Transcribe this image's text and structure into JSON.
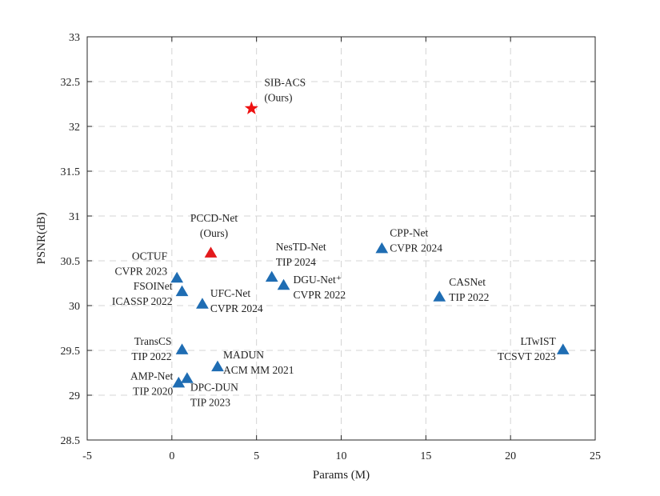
{
  "chart_data": {
    "type": "scatter",
    "xlabel": "Params (M)",
    "ylabel": "PSNR(dB)",
    "xlim": [
      -5,
      25
    ],
    "ylim": [
      28.5,
      33
    ],
    "xticks": [
      -5,
      0,
      5,
      10,
      15,
      20,
      25
    ],
    "yticks": [
      28.5,
      29,
      29.5,
      30,
      30.5,
      31,
      31.5,
      32,
      32.5,
      33
    ],
    "grid": true,
    "colors": {
      "ours_star": "#ee1111",
      "ours_triangle": "#e31a1c",
      "baseline": "#1f6db3"
    },
    "points": [
      {
        "name": "SIB-ACS",
        "sub": "(Ours)",
        "x": 4.7,
        "y": 32.2,
        "marker": "star",
        "group": "ours_star"
      },
      {
        "name": "PCCD-Net",
        "sub": "(Ours)",
        "x": 2.3,
        "y": 30.59,
        "marker": "triangle",
        "group": "ours_triangle"
      },
      {
        "name": "OCTUF",
        "sub": "CVPR 2023",
        "x": 0.3,
        "y": 30.31,
        "marker": "triangle",
        "group": "baseline"
      },
      {
        "name": "FSOINet",
        "sub": "ICASSP 2022",
        "x": 0.6,
        "y": 30.16,
        "marker": "triangle",
        "group": "baseline"
      },
      {
        "name": "UFC-Net",
        "sub": "CVPR 2024",
        "x": 1.8,
        "y": 30.02,
        "marker": "triangle",
        "group": "baseline"
      },
      {
        "name": "NesTD-Net",
        "sub": "TIP 2024",
        "x": 5.9,
        "y": 30.32,
        "marker": "triangle",
        "group": "baseline"
      },
      {
        "name": "DGU-Net⁺",
        "sub": "CVPR 2022",
        "x": 6.6,
        "y": 30.23,
        "marker": "triangle",
        "group": "baseline"
      },
      {
        "name": "CPP-Net",
        "sub": "CVPR 2024",
        "x": 12.4,
        "y": 30.64,
        "marker": "triangle",
        "group": "baseline"
      },
      {
        "name": "CASNet",
        "sub": "TIP 2022",
        "x": 15.8,
        "y": 30.1,
        "marker": "triangle",
        "group": "baseline"
      },
      {
        "name": "TransCS",
        "sub": "TIP 2022",
        "x": 0.6,
        "y": 29.51,
        "marker": "triangle",
        "group": "baseline"
      },
      {
        "name": "MADUN",
        "sub": "ACM MM 2021",
        "x": 2.7,
        "y": 29.32,
        "marker": "triangle",
        "group": "baseline"
      },
      {
        "name": "DPC-DUN",
        "sub": "TIP 2023",
        "x": 0.9,
        "y": 29.19,
        "marker": "triangle",
        "group": "baseline"
      },
      {
        "name": "AMP-Net",
        "sub": "TIP 2020",
        "x": 0.4,
        "y": 29.14,
        "marker": "triangle",
        "group": "baseline"
      },
      {
        "name": "LTwIST",
        "sub": "TCSVT 2023",
        "x": 23.1,
        "y": 29.51,
        "marker": "triangle",
        "group": "baseline"
      }
    ]
  }
}
